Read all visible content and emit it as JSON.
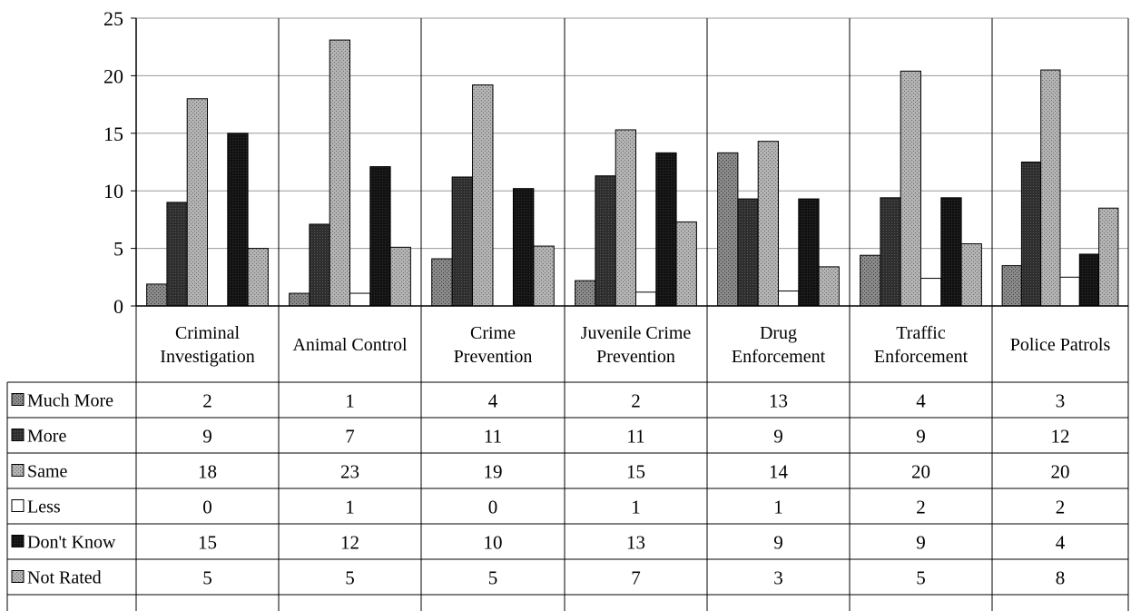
{
  "chart_data": {
    "type": "bar",
    "title": "",
    "xlabel": "",
    "ylabel": "",
    "ylim": [
      0,
      25
    ],
    "yticks": [
      0,
      5,
      10,
      15,
      20,
      25
    ],
    "grid": true,
    "legend": "data-table",
    "categories": [
      [
        "Criminal",
        "Investigation"
      ],
      [
        "Animal Control"
      ],
      [
        "Crime",
        "Prevention"
      ],
      [
        "Juvenile Crime",
        "Prevention"
      ],
      [
        "Drug",
        "Enforcement"
      ],
      [
        "Traffic",
        "Enforcement"
      ],
      [
        "Police Patrols"
      ]
    ],
    "series": [
      {
        "name": "Much More",
        "color": "#7a7a7a",
        "values": [
          2,
          1,
          4,
          2,
          13,
          4,
          3
        ]
      },
      {
        "name": "More",
        "color": "#2b2b2b",
        "values": [
          9,
          7,
          11,
          11,
          9,
          9,
          12
        ]
      },
      {
        "name": "Same",
        "color": "#a6a6a6",
        "values": [
          18,
          23,
          19,
          15,
          14,
          20,
          20
        ]
      },
      {
        "name": "Less",
        "color": "#ffffff",
        "values": [
          0,
          1,
          0,
          1,
          1,
          2,
          2
        ]
      },
      {
        "name": "Don't Know",
        "color": "#141414",
        "values": [
          15,
          12,
          10,
          13,
          9,
          9,
          4
        ]
      },
      {
        "name": "Not Rated",
        "color": "#8c8c8c",
        "values": [
          5,
          5,
          5,
          7,
          3,
          5,
          8
        ]
      }
    ],
    "bar_values_drawn": [
      [
        1.9,
        9,
        18,
        0,
        15,
        5
      ],
      [
        1.1,
        7.1,
        23.1,
        1.1,
        12.1,
        5.1
      ],
      [
        4.1,
        11.2,
        19.2,
        0,
        10.2,
        5.2
      ],
      [
        2.2,
        11.3,
        15.3,
        1.2,
        13.3,
        7.3
      ],
      [
        13.3,
        9.3,
        14.3,
        1.3,
        9.3,
        3.4
      ],
      [
        4.4,
        9.4,
        20.4,
        2.4,
        9.4,
        5.4
      ],
      [
        3.5,
        12.5,
        20.5,
        2.5,
        4.5,
        8.5
      ]
    ]
  }
}
